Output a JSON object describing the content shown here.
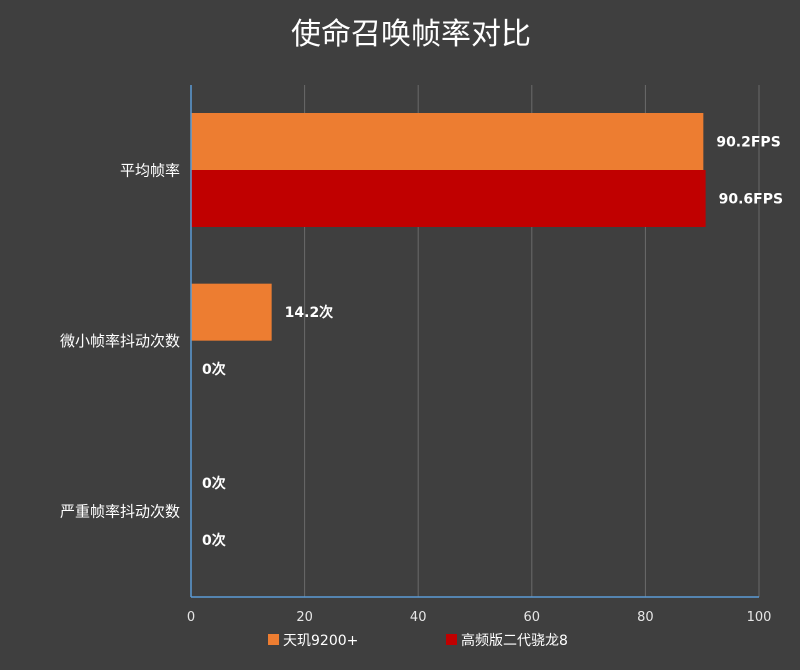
{
  "chart_data": {
    "type": "bar",
    "orientation": "horizontal",
    "title": "使命召唤帧率对比",
    "categories": [
      "平均帧率",
      "微小帧率抖动次数",
      "严重帧率抖动次数"
    ],
    "series": [
      {
        "name": "天玑9200+",
        "color": "#ed7d31",
        "values": [
          90.2,
          14.2,
          0
        ],
        "labels": [
          "90.2FPS",
          "14.2次",
          "0次"
        ]
      },
      {
        "name": "高频版二代骁龙8",
        "color": "#c00000",
        "values": [
          90.6,
          0,
          0
        ],
        "labels": [
          "90.6FPS",
          "0次",
          "0次"
        ]
      }
    ],
    "xlim": [
      0,
      100
    ],
    "xticks": [
      "0",
      "20",
      "40",
      "60",
      "80",
      "100"
    ],
    "grid": true,
    "legend_position": "bottom"
  }
}
